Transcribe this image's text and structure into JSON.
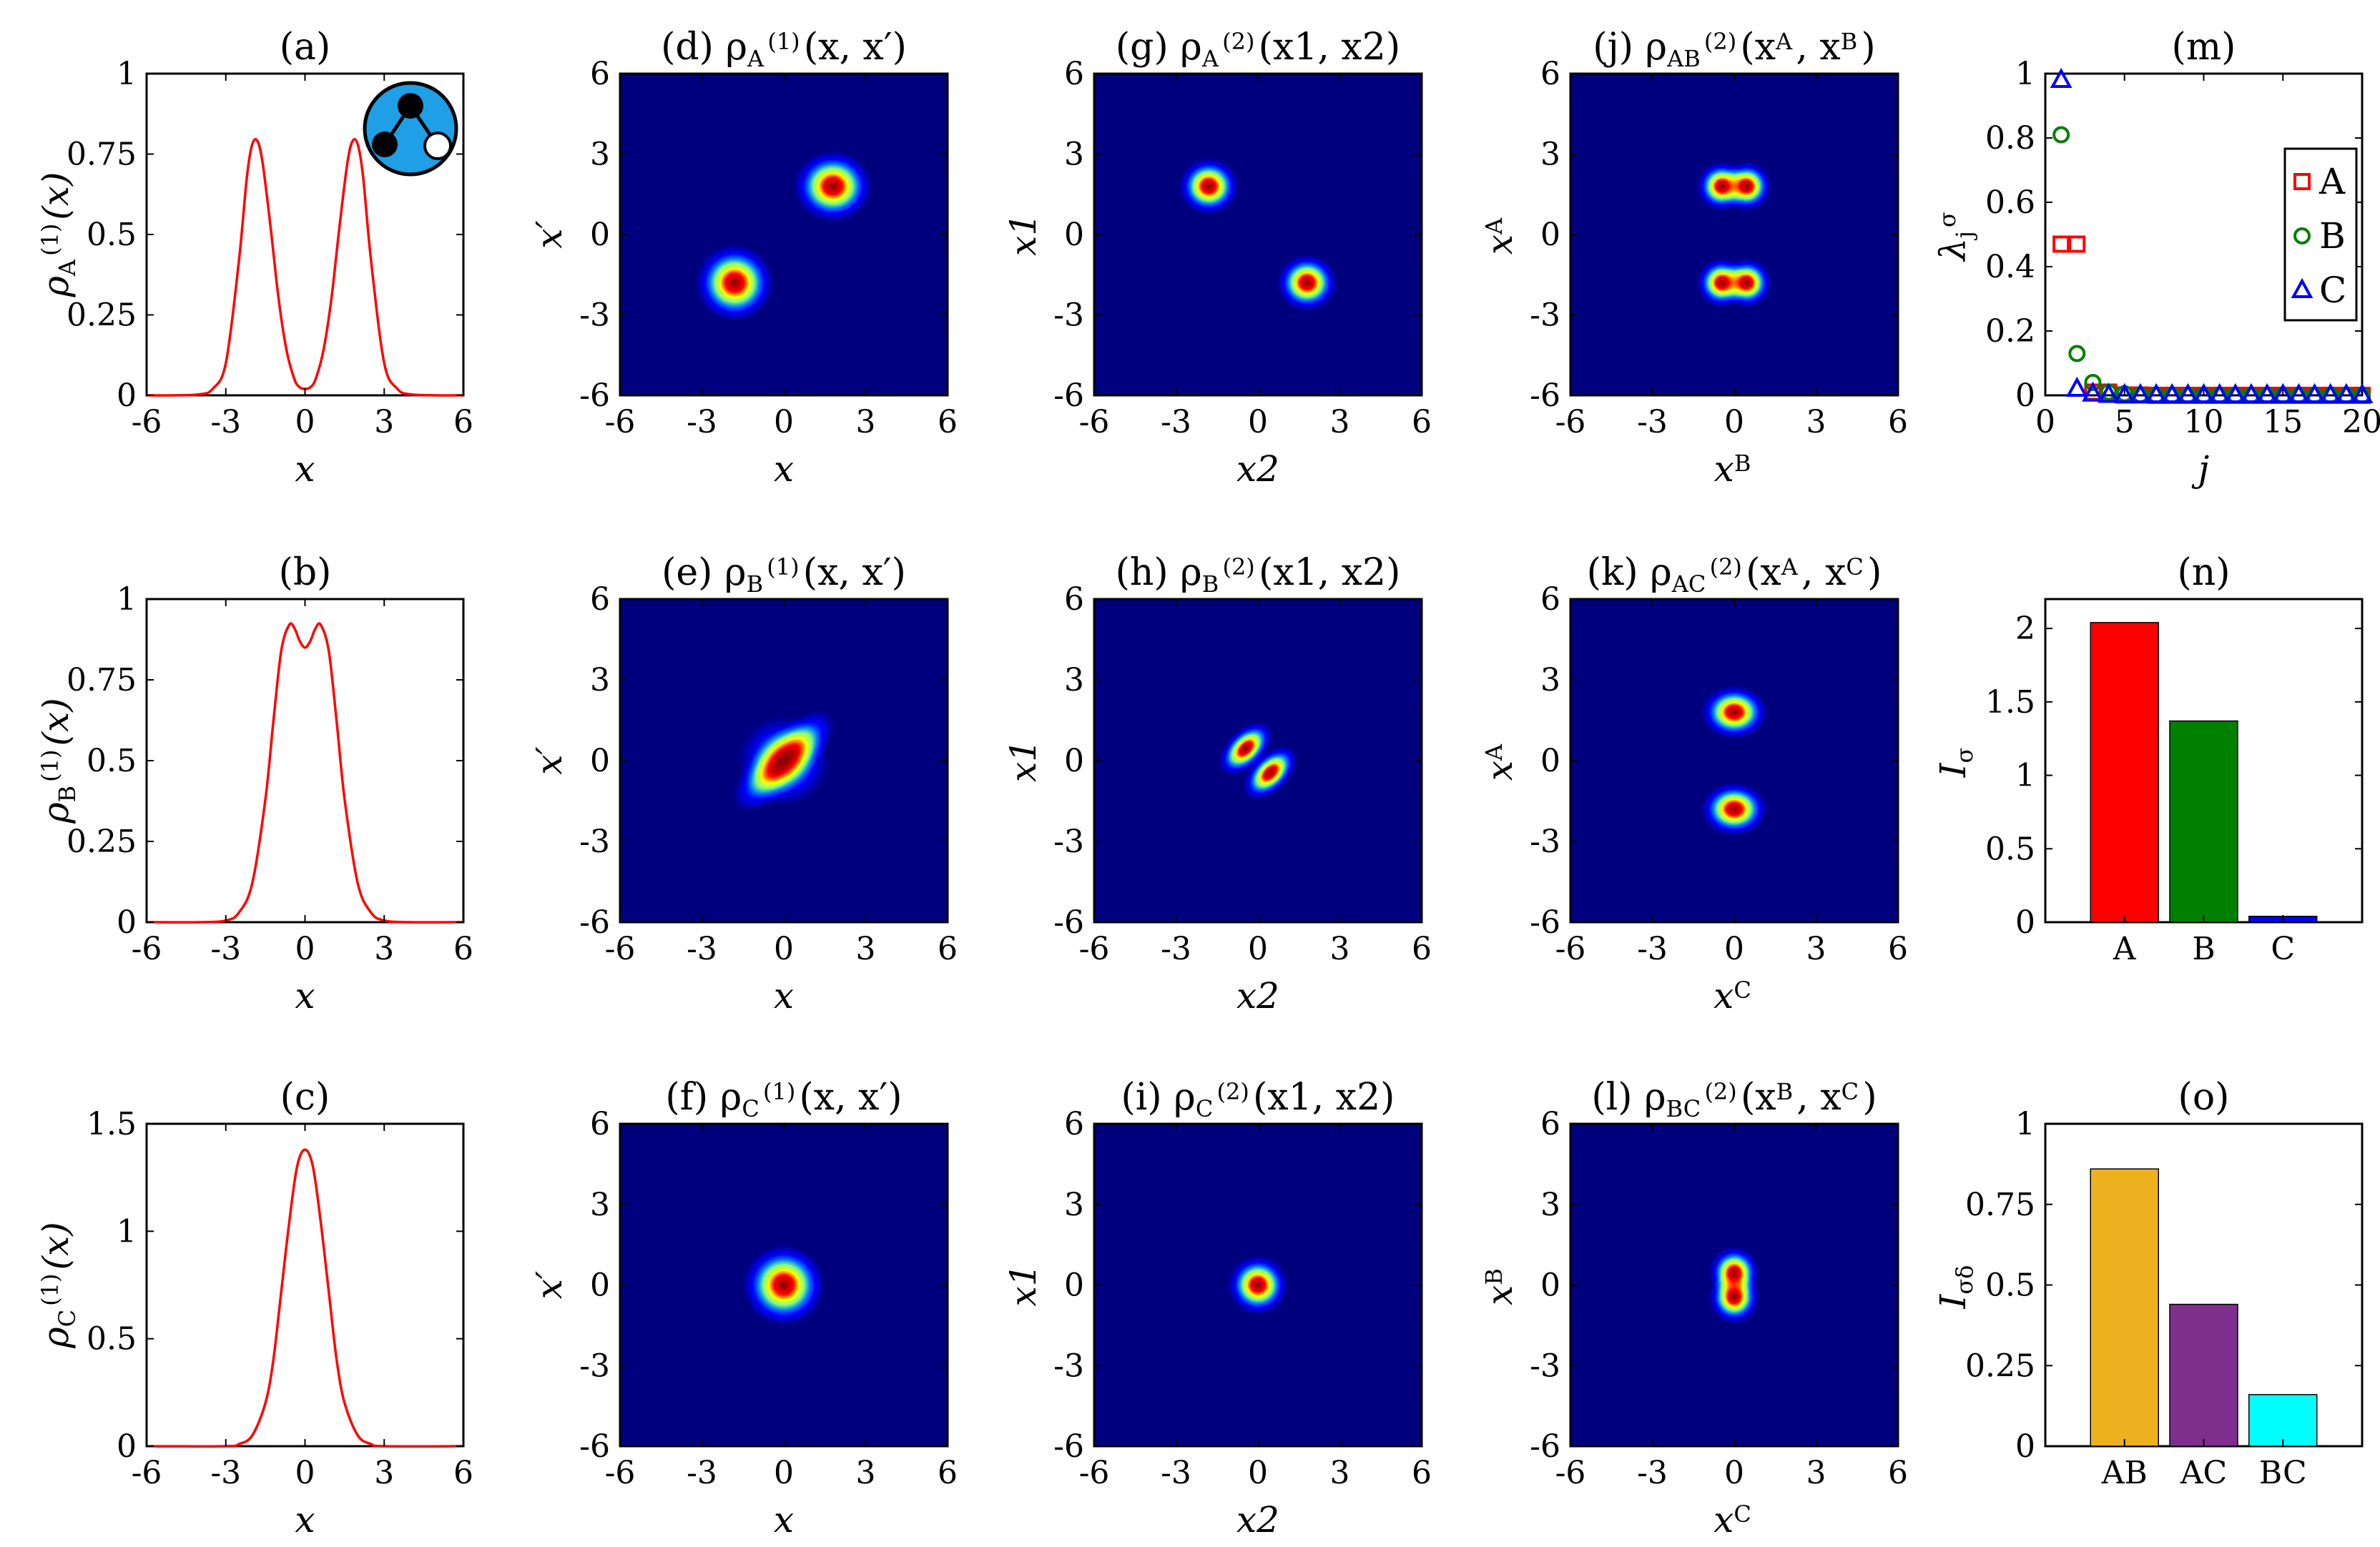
{
  "chart_data": [
    {
      "id": "a",
      "type": "line",
      "title": "(a)",
      "xlabel": "x",
      "ylabel": "ρ_A^(1)(x)",
      "xlim": [
        -6,
        6
      ],
      "ylim": [
        0,
        1
      ],
      "xticks": [
        -6,
        -3,
        0,
        3,
        6
      ],
      "yticks": [
        0,
        0.25,
        0.5,
        0.75,
        1
      ],
      "x": [
        -6,
        -5,
        -4,
        -3.5,
        -3,
        -2.5,
        -2.2,
        -2,
        -1.8,
        -1.6,
        -1.3,
        -1,
        -0.7,
        -0.4,
        -0.2,
        0,
        0.2,
        0.4,
        0.7,
        1,
        1.3,
        1.6,
        1.8,
        2,
        2.2,
        2.5,
        3,
        3.5,
        4,
        5,
        6
      ],
      "y": [
        0,
        0,
        0.003,
        0.02,
        0.1,
        0.42,
        0.68,
        0.78,
        0.79,
        0.72,
        0.52,
        0.3,
        0.14,
        0.05,
        0.025,
        0.02,
        0.025,
        0.05,
        0.14,
        0.3,
        0.52,
        0.72,
        0.79,
        0.78,
        0.68,
        0.42,
        0.1,
        0.02,
        0.003,
        0,
        0
      ],
      "inset": "three-site-icon"
    },
    {
      "id": "b",
      "type": "line",
      "title": "(b)",
      "xlabel": "x",
      "ylabel": "ρ_B^(1)(x)",
      "xlim": [
        -6,
        6
      ],
      "ylim": [
        0,
        1
      ],
      "xticks": [
        -6,
        -3,
        0,
        3,
        6
      ],
      "yticks": [
        0,
        0.25,
        0.5,
        0.75,
        1
      ],
      "x": [
        -6,
        -4,
        -3,
        -2.5,
        -2,
        -1.5,
        -1.2,
        -0.9,
        -0.6,
        -0.4,
        -0.2,
        0,
        0.2,
        0.4,
        0.6,
        0.9,
        1.2,
        1.5,
        2,
        2.5,
        3,
        4,
        6
      ],
      "y": [
        0,
        0,
        0.005,
        0.03,
        0.12,
        0.38,
        0.62,
        0.84,
        0.92,
        0.91,
        0.87,
        0.85,
        0.87,
        0.91,
        0.92,
        0.84,
        0.62,
        0.38,
        0.12,
        0.03,
        0.005,
        0,
        0
      ]
    },
    {
      "id": "c",
      "type": "line",
      "title": "(c)",
      "xlabel": "x",
      "ylabel": "ρ_C^(1)(x)",
      "xlim": [
        -6,
        6
      ],
      "ylim": [
        0,
        1.5
      ],
      "xticks": [
        -6,
        -3,
        0,
        3,
        6
      ],
      "yticks": [
        0,
        0.5,
        1,
        1.5
      ],
      "x": [
        -6,
        -3,
        -2.5,
        -2,
        -1.5,
        -1.2,
        -0.9,
        -0.6,
        -0.3,
        0,
        0.3,
        0.6,
        0.9,
        1.2,
        1.5,
        2,
        2.5,
        3,
        6
      ],
      "y": [
        0,
        0,
        0.01,
        0.05,
        0.2,
        0.4,
        0.72,
        1.04,
        1.3,
        1.38,
        1.3,
        1.04,
        0.72,
        0.4,
        0.2,
        0.05,
        0.01,
        0,
        0
      ]
    },
    {
      "id": "d",
      "type": "heatmap",
      "title": "(d)",
      "label": "ρ_A^(1)(x, x′)",
      "xlabel": "x",
      "ylabel": "x′",
      "xlim": [
        -6,
        6
      ],
      "ylim": [
        -6,
        6
      ],
      "ticks": [
        -6,
        -3,
        0,
        3,
        6
      ],
      "blobs": [
        {
          "x": 1.8,
          "y": 1.8,
          "sx": 0.65,
          "sy": 0.6,
          "r": 0,
          "a": 1
        },
        {
          "x": -1.8,
          "y": -1.8,
          "sx": 0.65,
          "sy": 0.65,
          "r": 0,
          "a": 1
        }
      ]
    },
    {
      "id": "e",
      "type": "heatmap",
      "title": "(e)",
      "label": "ρ_B^(1)(x, x′)",
      "xlabel": "x",
      "ylabel": "x′",
      "xlim": [
        -6,
        6
      ],
      "ylim": [
        -6,
        6
      ],
      "ticks": [
        -6,
        -3,
        0,
        3,
        6
      ],
      "blobs": [
        {
          "x": 0,
          "y": 0,
          "sx": 1.1,
          "sy": 0.45,
          "r": 0.785,
          "a": 1
        },
        {
          "x": 0,
          "y": 0,
          "sx": 0.75,
          "sy": 0.75,
          "r": 0,
          "a": 0.6
        }
      ]
    },
    {
      "id": "f",
      "type": "heatmap",
      "title": "(f)",
      "label": "ρ_C^(1)(x, x′)",
      "xlabel": "x",
      "ylabel": "x′",
      "xlim": [
        -6,
        6
      ],
      "ylim": [
        -6,
        6
      ],
      "ticks": [
        -6,
        -3,
        0,
        3,
        6
      ],
      "blobs": [
        {
          "x": 0,
          "y": 0,
          "sx": 0.68,
          "sy": 0.68,
          "r": 0,
          "a": 1
        }
      ]
    },
    {
      "id": "g",
      "type": "heatmap",
      "title": "(g)",
      "label": "ρ_A^(2)(x1, x2)",
      "xlabel": "x2",
      "ylabel": "x1",
      "xlim": [
        -6,
        6
      ],
      "ylim": [
        -6,
        6
      ],
      "ticks": [
        -6,
        -3,
        0,
        3,
        6
      ],
      "blobs": [
        {
          "x": -1.8,
          "y": 1.8,
          "sx": 0.5,
          "sy": 0.48,
          "r": 0,
          "a": 1
        },
        {
          "x": 1.8,
          "y": -1.8,
          "sx": 0.5,
          "sy": 0.48,
          "r": 0,
          "a": 1
        }
      ]
    },
    {
      "id": "h",
      "type": "heatmap",
      "title": "(h)",
      "label": "ρ_B^(2)(x1, x2)",
      "xlabel": "x2",
      "ylabel": "x1",
      "xlim": [
        -6,
        6
      ],
      "ylim": [
        -6,
        6
      ],
      "ticks": [
        -6,
        -3,
        0,
        3,
        6
      ],
      "blobs": [
        {
          "x": -0.45,
          "y": 0.45,
          "sx": 0.55,
          "sy": 0.32,
          "r": 0.785,
          "a": 1
        },
        {
          "x": 0.45,
          "y": -0.45,
          "sx": 0.55,
          "sy": 0.32,
          "r": 0.785,
          "a": 1
        }
      ]
    },
    {
      "id": "i",
      "type": "heatmap",
      "title": "(i)",
      "label": "ρ_C^(2)(x1, x2)",
      "xlabel": "x2",
      "ylabel": "x1",
      "xlim": [
        -6,
        6
      ],
      "ylim": [
        -6,
        6
      ],
      "ticks": [
        -6,
        -3,
        0,
        3,
        6
      ],
      "blobs": [
        {
          "x": 0,
          "y": 0,
          "sx": 0.5,
          "sy": 0.5,
          "r": 0,
          "a": 1
        }
      ]
    },
    {
      "id": "j",
      "type": "heatmap",
      "title": "(j)",
      "label": "ρ_AB^(2)(x^A, x^B)",
      "xlabel": "x^B",
      "ylabel": "x^A",
      "xlim": [
        -6,
        6
      ],
      "ylim": [
        -6,
        6
      ],
      "ticks": [
        -6,
        -3,
        0,
        3,
        6
      ],
      "blobs": [
        {
          "x": -0.45,
          "y": 1.8,
          "sx": 0.42,
          "sy": 0.42,
          "r": 0,
          "a": 1
        },
        {
          "x": 0.45,
          "y": 1.8,
          "sx": 0.42,
          "sy": 0.42,
          "r": 0,
          "a": 1
        },
        {
          "x": -0.45,
          "y": -1.8,
          "sx": 0.42,
          "sy": 0.42,
          "r": 0,
          "a": 1
        },
        {
          "x": 0.45,
          "y": -1.8,
          "sx": 0.42,
          "sy": 0.42,
          "r": 0,
          "a": 1
        }
      ]
    },
    {
      "id": "k",
      "type": "heatmap",
      "title": "(k)",
      "label": "ρ_AC^(2)(x^A, x^C)",
      "xlabel": "x^C",
      "ylabel": "x^A",
      "xlim": [
        -6,
        6
      ],
      "ylim": [
        -6,
        6
      ],
      "ticks": [
        -6,
        -3,
        0,
        3,
        6
      ],
      "blobs": [
        {
          "x": 0,
          "y": 1.8,
          "sx": 0.55,
          "sy": 0.45,
          "r": 0,
          "a": 1
        },
        {
          "x": 0,
          "y": -1.8,
          "sx": 0.55,
          "sy": 0.45,
          "r": 0,
          "a": 1
        }
      ]
    },
    {
      "id": "l",
      "type": "heatmap",
      "title": "(l)",
      "label": "ρ_BC^(2)(x^B, x^C)",
      "xlabel": "x^C",
      "ylabel": "x^B",
      "xlim": [
        -6,
        6
      ],
      "ylim": [
        -6,
        6
      ],
      "ticks": [
        -6,
        -3,
        0,
        3,
        6
      ],
      "blobs": [
        {
          "x": 0,
          "y": 0.45,
          "sx": 0.42,
          "sy": 0.45,
          "r": 0,
          "a": 1
        },
        {
          "x": 0,
          "y": -0.45,
          "sx": 0.42,
          "sy": 0.45,
          "r": 0,
          "a": 1
        }
      ]
    },
    {
      "id": "m",
      "type": "scatter",
      "title": "(m)",
      "xlabel": "j",
      "ylabel": "λ_j^σ",
      "xlim": [
        0,
        20
      ],
      "ylim": [
        0,
        1
      ],
      "xticks": [
        0,
        5,
        10,
        15,
        20
      ],
      "xticklabels": [
        "0",
        "5",
        "10",
        "15",
        "20"
      ],
      "yticks": [
        0,
        0.2,
        0.4,
        0.6,
        0.8,
        1
      ],
      "legend": "top-right",
      "series": [
        {
          "name": "A",
          "marker": "square",
          "color": "#ff0000",
          "x": [
            1,
            2,
            3,
            4,
            5,
            6,
            7,
            8,
            9,
            10,
            11,
            12,
            13,
            14,
            15,
            16,
            17,
            18,
            19,
            20
          ],
          "y": [
            0.47,
            0.47,
            0.01,
            0.01,
            0.001,
            0.001,
            0,
            0,
            0,
            0,
            0,
            0,
            0,
            0,
            0,
            0,
            0,
            0,
            0,
            0
          ]
        },
        {
          "name": "B",
          "marker": "circle",
          "color": "#008000",
          "x": [
            1,
            2,
            3,
            4,
            5,
            6,
            7,
            8,
            9,
            10,
            11,
            12,
            13,
            14,
            15,
            16,
            17,
            18,
            19,
            20
          ],
          "y": [
            0.81,
            0.13,
            0.04,
            0.01,
            0.005,
            0.002,
            0,
            0,
            0,
            0,
            0,
            0,
            0,
            0,
            0,
            0,
            0,
            0,
            0,
            0
          ]
        },
        {
          "name": "C",
          "marker": "triangle",
          "color": "#0000ff",
          "x": [
            1,
            2,
            3,
            4,
            5,
            6,
            7,
            8,
            9,
            10,
            11,
            12,
            13,
            14,
            15,
            16,
            17,
            18,
            19,
            20
          ],
          "y": [
            0.98,
            0.02,
            0.005,
            0.001,
            0,
            0,
            0,
            0,
            0,
            0,
            0,
            0,
            0,
            0,
            0,
            0,
            0,
            0,
            0,
            0
          ]
        }
      ]
    },
    {
      "id": "n",
      "type": "bar",
      "title": "(n)",
      "ylabel": "I_σ",
      "ylim": [
        0,
        2.2
      ],
      "yticks": [
        0,
        0.5,
        1,
        1.5,
        2
      ],
      "categories": [
        "A",
        "B",
        "C"
      ],
      "values": [
        2.04,
        1.37,
        0.04
      ],
      "colors": [
        "#ff0000",
        "#008000",
        "#0000ff"
      ]
    },
    {
      "id": "o",
      "type": "bar",
      "title": "(o)",
      "ylabel": "I_σδ",
      "ylim": [
        0,
        1
      ],
      "yticks": [
        0,
        0.25,
        0.5,
        0.75,
        1
      ],
      "categories": [
        "AB",
        "AC",
        "BC"
      ],
      "values": [
        0.86,
        0.44,
        0.16
      ],
      "colors": [
        "#edb120",
        "#7e2f8e",
        "#00ffff"
      ]
    }
  ]
}
